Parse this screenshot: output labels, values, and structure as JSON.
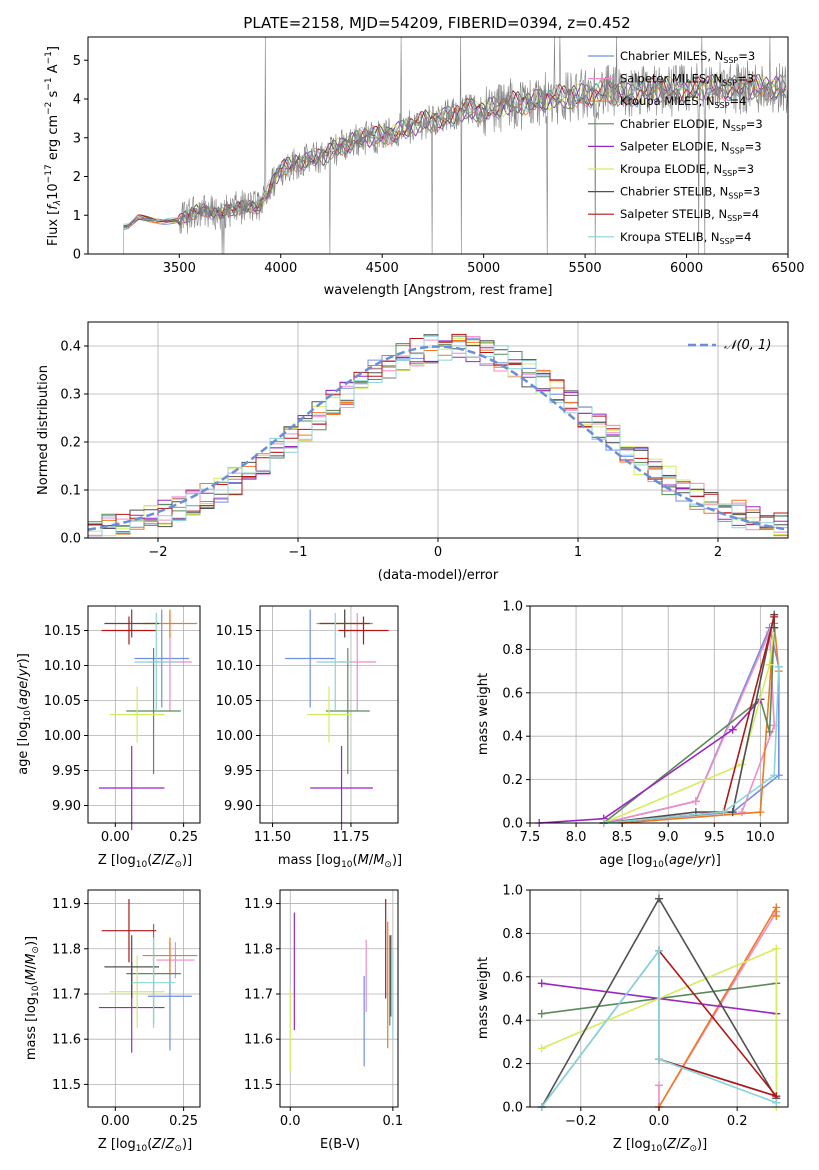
{
  "title": "PLATE=2158, MJD=54209, FIBERID=0394, z=0.452",
  "colors": {
    "Chabrier MILES": "#6f8fdf",
    "Salpeter MILES": "#f08cc8",
    "Kroupa MILES": "#ee7a22",
    "Chabrier ELODIE": "#5a8a5a",
    "Salpeter ELODIE": "#9a28c0",
    "Kroupa ELODIE": "#d4ec60",
    "Chabrier STELIB": "#505050",
    "Salpeter STELIB": "#b01818",
    "Kroupa STELIB": "#8ad4d8"
  },
  "legend_spectrum": [
    {
      "name": "Chabrier MILES",
      "nssp": "3"
    },
    {
      "name": "Salpeter MILES",
      "nssp": "3"
    },
    {
      "name": "Kroupa MILES",
      "nssp": "4"
    },
    {
      "name": "Chabrier ELODIE",
      "nssp": "3"
    },
    {
      "name": "Salpeter ELODIE",
      "nssp": "3"
    },
    {
      "name": "Kroupa ELODIE",
      "nssp": "3"
    },
    {
      "name": "Chabrier STELIB",
      "nssp": "3"
    },
    {
      "name": "Salpeter STELIB",
      "nssp": "4"
    },
    {
      "name": "Kroupa STELIB",
      "nssp": "4"
    }
  ],
  "chart_data": [
    {
      "id": "spectrum",
      "type": "line",
      "xlabel": "wavelength [Angstrom, rest frame]",
      "ylabel": "Flux [f_λ 10^-17 erg cm^-2 s^-1 A^-1]",
      "xlim": [
        3050,
        6500
      ],
      "ylim": [
        0,
        5.6
      ],
      "xticks": [
        3500,
        4000,
        4500,
        5000,
        5500,
        6000,
        6500
      ],
      "yticks": [
        0,
        1,
        2,
        3,
        4,
        5
      ],
      "data_x": [
        3250,
        3300,
        3400,
        3500,
        3600,
        3700,
        3800,
        3900,
        4000,
        4100,
        4200,
        4300,
        4400,
        4500,
        4600,
        4700,
        4800,
        4900,
        5000,
        5100,
        5200,
        5300,
        5400,
        5500,
        5600,
        5700,
        5800,
        5900,
        6000,
        6100,
        6200,
        6300,
        6400,
        6500
      ],
      "data_y": [
        0.7,
        0.95,
        0.85,
        0.85,
        1.15,
        1.05,
        1.2,
        1.25,
        2.2,
        2.4,
        2.5,
        2.8,
        3.0,
        3.05,
        3.2,
        3.4,
        3.5,
        3.7,
        3.7,
        3.85,
        3.9,
        4.0,
        4.05,
        4.1,
        4.2,
        4.1,
        4.2,
        4.25,
        4.2,
        4.3,
        4.3,
        4.3,
        4.3,
        4.3
      ]
    },
    {
      "id": "residuals",
      "type": "line",
      "xlabel": "(data-model)/error",
      "ylabel": "Normed distribution",
      "xlim": [
        -2.5,
        2.5
      ],
      "ylim": [
        0,
        0.45
      ],
      "xticks": [
        -2,
        -1,
        0,
        1,
        2
      ],
      "yticks": [
        0.0,
        0.1,
        0.2,
        0.3,
        0.4
      ],
      "series": [
        {
          "name": "𝒩(0, 1)",
          "mean": 0,
          "sigma": 1
        }
      ]
    },
    {
      "id": "age-vs-Z",
      "type": "scatter",
      "xlabel": "Z [log10(Z/Z⊙)]",
      "ylabel": "age [log10(age/yr)]",
      "xlim": [
        -0.1,
        0.31
      ],
      "ylim": [
        9.875,
        10.185
      ],
      "xticks": [
        0.0,
        0.25
      ],
      "yticks": [
        9.9,
        9.95,
        10.0,
        10.05,
        10.1,
        10.15
      ],
      "points": [
        {
          "series": "Chabrier MILES",
          "x": 0.17,
          "y": 10.11,
          "xerr": 0.1,
          "yerr": 0.07
        },
        {
          "series": "Salpeter MILES",
          "x": 0.2,
          "y": 10.105,
          "xerr": 0.08,
          "yerr": 0.07
        },
        {
          "series": "Kroupa MILES",
          "x": 0.2,
          "y": 10.16,
          "xerr": 0.1,
          "yerr": 0.02
        },
        {
          "series": "Chabrier ELODIE",
          "x": 0.14,
          "y": 10.035,
          "xerr": 0.1,
          "yerr": 0.09
        },
        {
          "series": "Salpeter ELODIE",
          "x": 0.06,
          "y": 9.925,
          "xerr": 0.12,
          "yerr": 0.06
        },
        {
          "series": "Kroupa ELODIE",
          "x": 0.08,
          "y": 10.03,
          "xerr": 0.1,
          "yerr": 0.04
        },
        {
          "series": "Chabrier STELIB",
          "x": 0.06,
          "y": 10.16,
          "xerr": 0.1,
          "yerr": 0.02
        },
        {
          "series": "Salpeter STELIB",
          "x": 0.05,
          "y": 10.15,
          "xerr": 0.1,
          "yerr": 0.02
        },
        {
          "series": "Kroupa STELIB",
          "x": 0.15,
          "y": 10.105,
          "xerr": 0.08,
          "yerr": 0.07
        }
      ]
    },
    {
      "id": "age-vs-mass",
      "type": "scatter",
      "xlabel": "mass [log10(M/M⊙)]",
      "ylabel": "",
      "xlim": [
        11.46,
        11.9
      ],
      "ylim": [
        9.875,
        10.185
      ],
      "xticks": [
        11.5,
        11.75
      ],
      "yticks": [
        9.9,
        9.95,
        10.0,
        10.05,
        10.1,
        10.15
      ],
      "points": [
        {
          "series": "Chabrier MILES",
          "x": 11.62,
          "y": 10.11,
          "xerr": 0.08,
          "yerr": 0.07
        },
        {
          "series": "Salpeter MILES",
          "x": 11.77,
          "y": 10.105,
          "xerr": 0.06,
          "yerr": 0.07
        },
        {
          "series": "Kroupa MILES",
          "x": 11.73,
          "y": 10.16,
          "xerr": 0.09,
          "yerr": 0.02
        },
        {
          "series": "Chabrier ELODIE",
          "x": 11.74,
          "y": 10.035,
          "xerr": 0.07,
          "yerr": 0.09
        },
        {
          "series": "Salpeter ELODIE",
          "x": 11.72,
          "y": 9.925,
          "xerr": 0.1,
          "yerr": 0.06
        },
        {
          "series": "Kroupa ELODIE",
          "x": 11.68,
          "y": 10.03,
          "xerr": 0.07,
          "yerr": 0.04
        },
        {
          "series": "Chabrier STELIB",
          "x": 11.73,
          "y": 10.16,
          "xerr": 0.08,
          "yerr": 0.02
        },
        {
          "series": "Salpeter STELIB",
          "x": 11.79,
          "y": 10.15,
          "xerr": 0.08,
          "yerr": 0.02
        },
        {
          "series": "Kroupa STELIB",
          "x": 11.7,
          "y": 10.105,
          "xerr": 0.06,
          "yerr": 0.07
        }
      ]
    },
    {
      "id": "weight-vs-age",
      "type": "line",
      "xlabel": "age [log10(age/yr)]",
      "ylabel": "mass weight",
      "xlim": [
        7.5,
        10.3
      ],
      "ylim": [
        0.0,
        1.0
      ],
      "xticks": [
        7.5,
        8.0,
        8.5,
        9.0,
        9.5,
        10.0
      ],
      "yticks": [
        0.0,
        0.2,
        0.4,
        0.6,
        0.8,
        1.0
      ]
    },
    {
      "id": "mass-vs-Z",
      "type": "scatter",
      "xlabel": "Z [log10(Z/Z⊙)]",
      "ylabel": "mass [log10(M/M⊙)]",
      "xlim": [
        -0.1,
        0.31
      ],
      "ylim": [
        11.45,
        11.93
      ],
      "xticks": [
        0.0,
        0.25
      ],
      "yticks": [
        11.5,
        11.6,
        11.7,
        11.8,
        11.9
      ],
      "points": [
        {
          "series": "Chabrier MILES",
          "x": 0.2,
          "y": 11.695,
          "xerr": 0.08,
          "yerr": 0.12
        },
        {
          "series": "Salpeter MILES",
          "x": 0.22,
          "y": 11.775,
          "xerr": 0.07,
          "yerr": 0.04
        },
        {
          "series": "Kroupa MILES",
          "x": 0.2,
          "y": 11.785,
          "xerr": 0.1,
          "yerr": 0.04
        },
        {
          "series": "Chabrier ELODIE",
          "x": 0.14,
          "y": 11.745,
          "xerr": 0.1,
          "yerr": 0.11
        },
        {
          "series": "Salpeter ELODIE",
          "x": 0.06,
          "y": 11.67,
          "xerr": 0.12,
          "yerr": 0.1
        },
        {
          "series": "Kroupa ELODIE",
          "x": 0.08,
          "y": 11.705,
          "xerr": 0.1,
          "yerr": 0.08
        },
        {
          "series": "Chabrier STELIB",
          "x": 0.06,
          "y": 11.76,
          "xerr": 0.1,
          "yerr": 0.07
        },
        {
          "series": "Salpeter STELIB",
          "x": 0.05,
          "y": 11.84,
          "xerr": 0.1,
          "yerr": 0.07
        },
        {
          "series": "Kroupa STELIB",
          "x": 0.14,
          "y": 11.725,
          "xerr": 0.08,
          "yerr": 0.1
        }
      ]
    },
    {
      "id": "mass-vs-ebv",
      "type": "scatter",
      "xlabel": "E(B-V)",
      "ylabel": "",
      "xlim": [
        -0.01,
        0.105
      ],
      "ylim": [
        11.45,
        11.93
      ],
      "xticks": [
        0.0,
        0.1
      ],
      "yticks": [
        11.5,
        11.6,
        11.7,
        11.8,
        11.9
      ],
      "points": [
        {
          "series": "Chabrier MILES",
          "x": 0.072,
          "y": 11.64,
          "yerr": 0.1
        },
        {
          "series": "Salpeter MILES",
          "x": 0.074,
          "y": 11.74,
          "yerr": 0.08
        },
        {
          "series": "Kroupa MILES",
          "x": 0.095,
          "y": 11.72,
          "yerr": 0.14
        },
        {
          "series": "Chabrier ELODIE",
          "x": 0.097,
          "y": 11.73,
          "yerr": 0.1
        },
        {
          "series": "Salpeter ELODIE",
          "x": 0.004,
          "y": 11.75,
          "yerr": 0.13
        },
        {
          "series": "Kroupa ELODIE",
          "x": 0.0,
          "y": 11.62,
          "yerr": 0.09
        },
        {
          "series": "Chabrier STELIB",
          "x": 0.098,
          "y": 11.74,
          "yerr": 0.09
        },
        {
          "series": "Salpeter STELIB",
          "x": 0.093,
          "y": 11.8,
          "yerr": 0.11
        },
        {
          "series": "Kroupa STELIB",
          "x": 0.1,
          "y": 11.7,
          "yerr": 0.1
        }
      ]
    },
    {
      "id": "weight-vs-Z",
      "type": "line",
      "xlabel": "Z [log10(Z/Z⊙)]",
      "ylabel": "mass weight",
      "xlim": [
        -0.33,
        0.33
      ],
      "ylim": [
        0.0,
        1.0
      ],
      "xticks": [
        -0.2,
        0.0,
        0.2
      ],
      "yticks": [
        0.0,
        0.2,
        0.4,
        0.6,
        0.8,
        1.0
      ]
    }
  ]
}
